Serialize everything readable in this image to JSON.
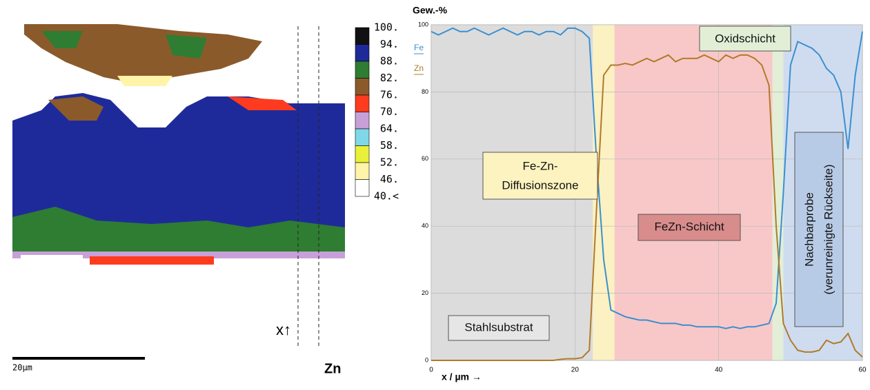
{
  "map": {
    "legend": {
      "labels": [
        "100.",
        "94.",
        "88.",
        "82.",
        "76.",
        "70.",
        "64.",
        "58.",
        "52.",
        "46.",
        "40.<"
      ],
      "colors": [
        "#111111",
        "#1f2a9a",
        "#2e7d32",
        "#8b5a2b",
        "#ff3b1f",
        "#c8a0d8",
        "#7fd8e8",
        "#e8f03a",
        "#fff4a8",
        "#ffffff"
      ]
    },
    "scale_bar": "20µm",
    "element": "Zn",
    "direction": "x↑"
  },
  "chart_data": {
    "type": "line",
    "y_label": "Gew.-%",
    "x_label": "x / µm →",
    "x": [
      0,
      1,
      2,
      3,
      4,
      5,
      6,
      7,
      8,
      9,
      10,
      11,
      12,
      13,
      14,
      15,
      16,
      17,
      18,
      19,
      20,
      21,
      22,
      23,
      24,
      25,
      26,
      27,
      28,
      29,
      30,
      31,
      32,
      33,
      34,
      35,
      36,
      37,
      38,
      39,
      40,
      41,
      42,
      43,
      44,
      45,
      46,
      47,
      48,
      49,
      50,
      51,
      52,
      53,
      54,
      55,
      56,
      57,
      58,
      59,
      60
    ],
    "series": [
      {
        "name": "Fe",
        "color": "#3a8fd0",
        "values": [
          98,
          97,
          98,
          99,
          98,
          98,
          99,
          98,
          97,
          98,
          99,
          98,
          97,
          98,
          98,
          97,
          98,
          98,
          97,
          99,
          99,
          98,
          96,
          60,
          30,
          15,
          14,
          13,
          12.5,
          12,
          12,
          11.5,
          11,
          11,
          11,
          10.5,
          10.5,
          10,
          10,
          10,
          10,
          9.5,
          10,
          9.5,
          10,
          10,
          10.5,
          11,
          17,
          50,
          88,
          95,
          94,
          93,
          91,
          87,
          85,
          80,
          63,
          85,
          98
        ]
      },
      {
        "name": "Zn",
        "color": "#b07a2a",
        "values": [
          0,
          0,
          0,
          0,
          0,
          0,
          0,
          0,
          0,
          0,
          0,
          0,
          0,
          0,
          0,
          0,
          0,
          0,
          0.3,
          0.5,
          0.5,
          0.8,
          3,
          45,
          85,
          88,
          88,
          88.5,
          88,
          89,
          90,
          89,
          90,
          91,
          89,
          90,
          90,
          90,
          91,
          90,
          89,
          91,
          90,
          91,
          91,
          90,
          88,
          82,
          40,
          11,
          6,
          3,
          2.5,
          2.5,
          3,
          6,
          5,
          5.5,
          8,
          3,
          1
        ]
      }
    ],
    "bands": [
      {
        "x": [
          0,
          22.5
        ],
        "color": "#dcdcdc"
      },
      {
        "x": [
          22.5,
          25.5
        ],
        "color": "#fbf1c2"
      },
      {
        "x": [
          25.5,
          47.5
        ],
        "color": "#f8c8c8"
      },
      {
        "x": [
          47.5,
          49
        ],
        "color": "#e2efd6"
      },
      {
        "x": [
          49,
          60
        ],
        "color": "#cfdcef"
      }
    ],
    "annotations": [
      {
        "lines": [
          "Stahlsubstrat"
        ]
      },
      {
        "lines": [
          "Fe-Zn-",
          "Diffusionszone"
        ]
      },
      {
        "lines": [
          "FeZn-Schicht"
        ]
      },
      {
        "lines": [
          "Oxidschicht"
        ]
      },
      {
        "lines": [
          "Nachbarprobe",
          "(verunreinigte Rückseite)"
        ]
      }
    ],
    "xlim": [
      0,
      60
    ],
    "xticks": [
      0,
      20,
      40,
      60
    ],
    "ylim": [
      0,
      100
    ],
    "yticks": [
      0,
      20,
      40,
      60,
      80,
      100
    ],
    "grid": true
  }
}
